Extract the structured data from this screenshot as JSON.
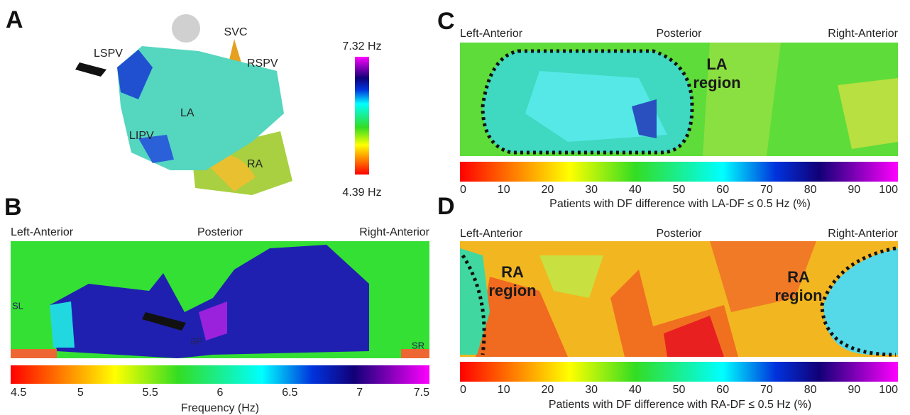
{
  "panels": [
    {
      "label": "A",
      "annotations": [
        "SVC",
        "LSPV",
        "RSPV",
        "LA",
        "LIPV",
        "RA"
      ],
      "colorbar": {
        "max": "7.32 Hz",
        "min": "4.39 Hz"
      }
    },
    {
      "label": "B",
      "axis_labels": [
        "Left-Anterior",
        "Posterior",
        "Right-Anterior"
      ],
      "annotations": [
        "SL",
        "SP",
        "SR"
      ],
      "colorbar_ticks": [
        4.5,
        5,
        5.5,
        6,
        6.5,
        7,
        7.5
      ],
      "colorbar_title": "Frequency (Hz)"
    },
    {
      "label": "C",
      "axis_labels": [
        "Left-Anterior",
        "Posterior",
        "Right-Anterior"
      ],
      "regions": [
        [
          "LA",
          "region"
        ]
      ],
      "colorbar_ticks": [
        0,
        10,
        20,
        30,
        40,
        50,
        60,
        70,
        80,
        90,
        100
      ],
      "colorbar_title": "Patients with DF difference with LA-DF ≤ 0.5 Hz (%)"
    },
    {
      "label": "D",
      "axis_labels": [
        "Left-Anterior",
        "Posterior",
        "Right-Anterior"
      ],
      "regions": [
        [
          "RA",
          "region"
        ],
        [
          "RA",
          "region"
        ]
      ],
      "colorbar_ticks": [
        0,
        10,
        20,
        30,
        40,
        50,
        60,
        70,
        80,
        90,
        100
      ],
      "colorbar_title": "Patients with DF difference with RA-DF ≤ 0.5 Hz (%)"
    }
  ]
}
